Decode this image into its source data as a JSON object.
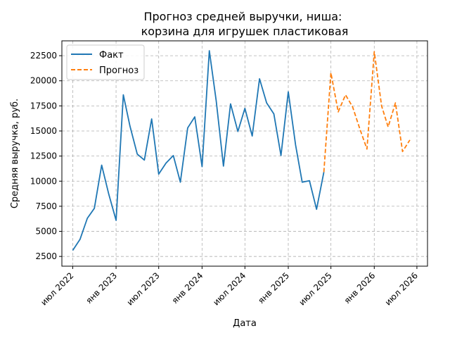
{
  "chart_data": {
    "type": "line",
    "title": "Прогноз средней выручки, ниша:\nкорзина для игрушек пластиковая",
    "xlabel": "Дата",
    "ylabel": "Средняя выручка, руб.",
    "grid": true,
    "legend_position": "top-left",
    "x_ticks": [
      {
        "label": "июл 2022",
        "date": "2022-07-01"
      },
      {
        "label": "янв 2023",
        "date": "2023-01-01"
      },
      {
        "label": "июл 2023",
        "date": "2023-07-01"
      },
      {
        "label": "янв 2024",
        "date": "2024-01-01"
      },
      {
        "label": "июл 2024",
        "date": "2024-07-01"
      },
      {
        "label": "янв 2025",
        "date": "2025-01-01"
      },
      {
        "label": "июл 2025",
        "date": "2025-07-01"
      },
      {
        "label": "янв 2026",
        "date": "2026-01-01"
      },
      {
        "label": "июл 2026",
        "date": "2026-07-01"
      }
    ],
    "y_ticks": [
      2500,
      5000,
      7500,
      10000,
      12500,
      15000,
      17500,
      20000,
      22500
    ],
    "xlim": [
      "2022-05-16",
      "2026-08-15"
    ],
    "ylim": [
      1530,
      23980
    ],
    "series": [
      {
        "name": "Факт",
        "color": "#1f77b4",
        "style": "solid",
        "points": [
          {
            "x": "2022-07-01",
            "y": 3100
          },
          {
            "x": "2022-08-01",
            "y": 4200
          },
          {
            "x": "2022-09-01",
            "y": 6300
          },
          {
            "x": "2022-10-01",
            "y": 7300
          },
          {
            "x": "2022-11-01",
            "y": 11600
          },
          {
            "x": "2022-12-01",
            "y": 8700
          },
          {
            "x": "2023-01-01",
            "y": 6100
          },
          {
            "x": "2023-02-01",
            "y": 18600
          },
          {
            "x": "2023-03-01",
            "y": 15500
          },
          {
            "x": "2023-04-01",
            "y": 12700
          },
          {
            "x": "2023-05-01",
            "y": 12100
          },
          {
            "x": "2023-06-01",
            "y": 16200
          },
          {
            "x": "2023-07-01",
            "y": 10700
          },
          {
            "x": "2023-08-01",
            "y": 11800
          },
          {
            "x": "2023-09-01",
            "y": 12550
          },
          {
            "x": "2023-10-01",
            "y": 9900
          },
          {
            "x": "2023-11-01",
            "y": 15300
          },
          {
            "x": "2023-12-01",
            "y": 16400
          },
          {
            "x": "2024-01-01",
            "y": 11450
          },
          {
            "x": "2024-02-01",
            "y": 23000
          },
          {
            "x": "2024-03-01",
            "y": 18000
          },
          {
            "x": "2024-04-01",
            "y": 11500
          },
          {
            "x": "2024-05-01",
            "y": 17700
          },
          {
            "x": "2024-06-01",
            "y": 14950
          },
          {
            "x": "2024-07-01",
            "y": 17250
          },
          {
            "x": "2024-08-01",
            "y": 14500
          },
          {
            "x": "2024-09-01",
            "y": 20200
          },
          {
            "x": "2024-10-01",
            "y": 17800
          },
          {
            "x": "2024-11-01",
            "y": 16700
          },
          {
            "x": "2024-12-01",
            "y": 12550
          },
          {
            "x": "2025-01-01",
            "y": 18900
          },
          {
            "x": "2025-02-01",
            "y": 13600
          },
          {
            "x": "2025-03-01",
            "y": 9900
          },
          {
            "x": "2025-04-01",
            "y": 10050
          },
          {
            "x": "2025-05-01",
            "y": 7200
          },
          {
            "x": "2025-06-01",
            "y": 10900
          }
        ]
      },
      {
        "name": "Прогноз",
        "color": "#ff7f0e",
        "style": "dashed",
        "points": [
          {
            "x": "2025-06-01",
            "y": 10900
          },
          {
            "x": "2025-07-01",
            "y": 20800
          },
          {
            "x": "2025-08-01",
            "y": 16900
          },
          {
            "x": "2025-09-01",
            "y": 18600
          },
          {
            "x": "2025-10-01",
            "y": 17400
          },
          {
            "x": "2025-11-01",
            "y": 15200
          },
          {
            "x": "2025-12-01",
            "y": 13200
          },
          {
            "x": "2026-01-01",
            "y": 22900
          },
          {
            "x": "2026-02-01",
            "y": 17500
          },
          {
            "x": "2026-03-01",
            "y": 15400
          },
          {
            "x": "2026-04-01",
            "y": 17800
          },
          {
            "x": "2026-05-01",
            "y": 12950
          },
          {
            "x": "2026-06-01",
            "y": 14100
          }
        ]
      }
    ]
  }
}
